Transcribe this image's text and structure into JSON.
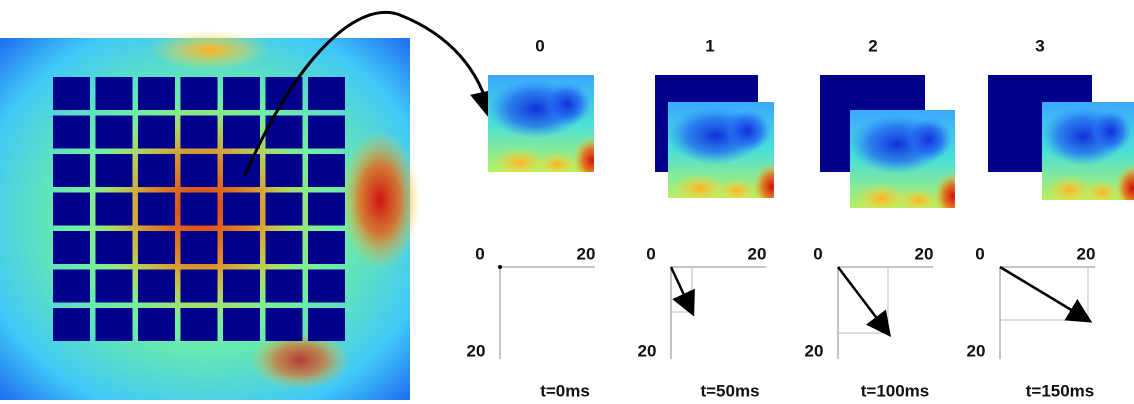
{
  "panels": [
    {
      "label": "0",
      "x_start": "0",
      "x_end": "20",
      "y_end": "20",
      "time": "t=0ms"
    },
    {
      "label": "1",
      "x_start": "0",
      "x_end": "20",
      "y_end": "20",
      "time": "t=50ms"
    },
    {
      "label": "2",
      "x_start": "0",
      "x_end": "20",
      "y_end": "20",
      "time": "t=100ms"
    },
    {
      "label": "3",
      "x_start": "0",
      "x_end": "20",
      "y_end": "20",
      "time": "t=150ms"
    }
  ]
}
